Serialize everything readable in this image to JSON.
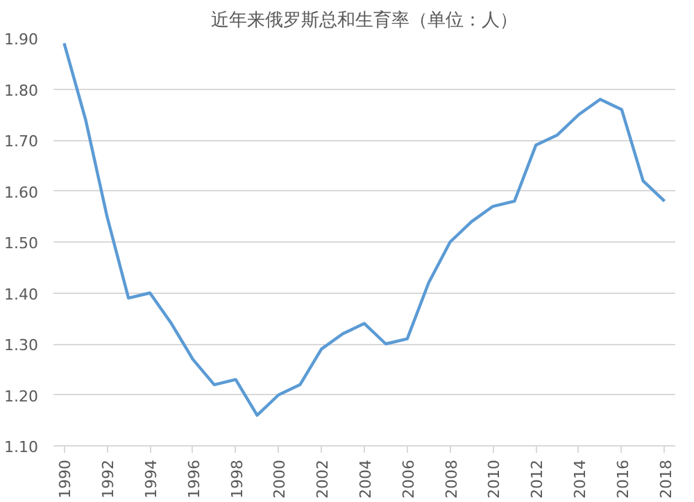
{
  "chart_data": {
    "type": "line",
    "title": "近年来俄罗斯总和生育率（单位：人）",
    "x": [
      1990,
      1991,
      1992,
      1993,
      1994,
      1995,
      1996,
      1997,
      1998,
      1999,
      2000,
      2001,
      2002,
      2003,
      2004,
      2005,
      2006,
      2007,
      2008,
      2009,
      2010,
      2011,
      2012,
      2013,
      2014,
      2015,
      2016,
      2017,
      2018
    ],
    "series": [
      {
        "color": "#5b9bd5",
        "values": [
          1.89,
          1.74,
          1.55,
          1.39,
          1.4,
          1.34,
          1.27,
          1.22,
          1.23,
          1.16,
          1.2,
          1.22,
          1.29,
          1.32,
          1.34,
          1.3,
          1.31,
          1.42,
          1.5,
          1.54,
          1.57,
          1.58,
          1.69,
          1.71,
          1.75,
          1.78,
          1.76,
          1.62,
          1.58
        ]
      }
    ],
    "xlim": [
      1989.5,
      2018.5
    ],
    "xticks": [
      1990,
      1992,
      1994,
      1996,
      1998,
      2000,
      2002,
      2004,
      2006,
      2008,
      2010,
      2012,
      2014,
      2016,
      2018
    ],
    "ylim": [
      1.1,
      1.9
    ],
    "yticks": [
      {
        "value": 1.1,
        "label": "1.10"
      },
      {
        "value": 1.2,
        "label": "1.20"
      },
      {
        "value": 1.3,
        "label": "1.30"
      },
      {
        "value": 1.4,
        "label": "1.40"
      },
      {
        "value": 1.5,
        "label": "1.50"
      },
      {
        "value": 1.6,
        "label": "1.60"
      },
      {
        "value": 1.7,
        "label": "1.70"
      },
      {
        "value": 1.8,
        "label": "1.80"
      },
      {
        "value": 1.9,
        "label": "1.90"
      }
    ],
    "grid": "y",
    "marker": "none",
    "line_style": "solid"
  }
}
